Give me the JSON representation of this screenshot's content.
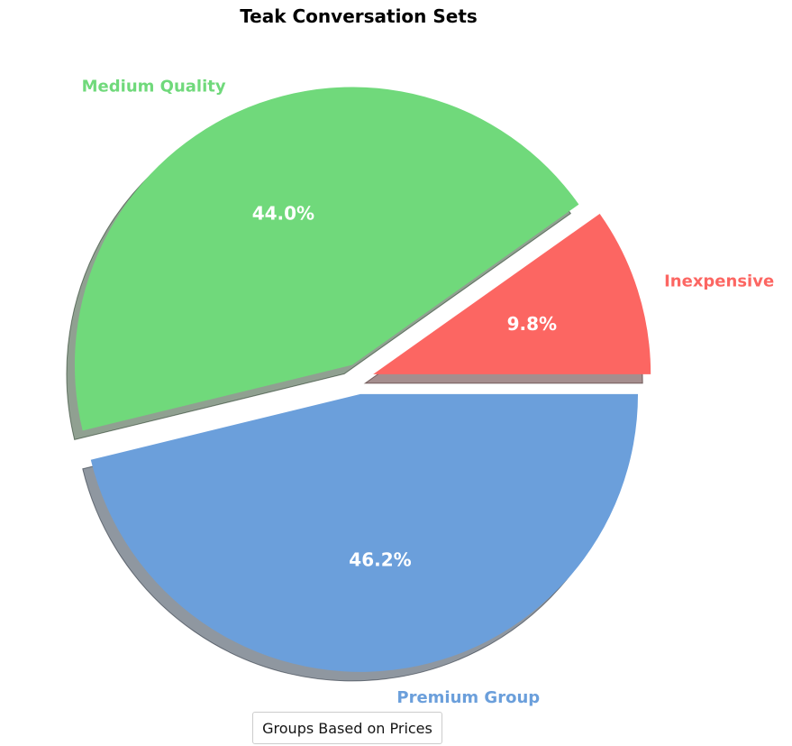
{
  "chart_data": {
    "type": "pie",
    "title": "Teak Conversation Sets",
    "legend_title": "Groups Based on Prices",
    "start_angle_deg": 0,
    "counterclockwise": true,
    "shadow": true,
    "exploded": true,
    "slices": [
      {
        "label": "Inexpensive",
        "value": 9.8,
        "pct_label": "9.8%",
        "color": "#fc6662"
      },
      {
        "label": "Medium Quality",
        "value": 44.0,
        "pct_label": "44.0%",
        "color": "#70d97b"
      },
      {
        "label": "Premium Group",
        "value": 46.2,
        "pct_label": "46.2%",
        "color": "#6b9fdb"
      }
    ],
    "pct_label_color": "#ffffff",
    "background_color": "#ffffff"
  }
}
